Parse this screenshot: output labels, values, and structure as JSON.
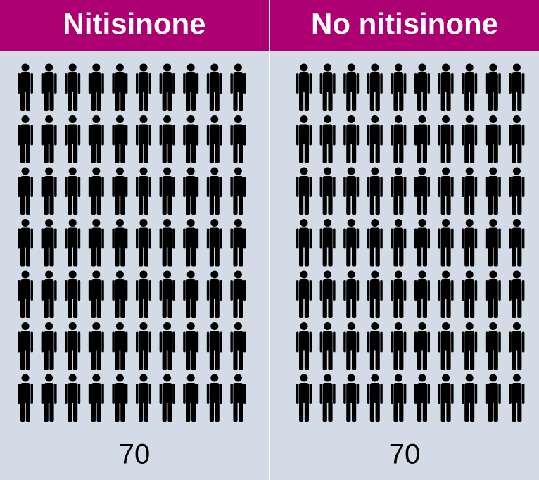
{
  "chart_data": {
    "type": "pictogram",
    "categories": [
      "Nitisinone",
      "No nitisinone"
    ],
    "values": [
      70,
      70
    ],
    "color": "#000000"
  }
}
